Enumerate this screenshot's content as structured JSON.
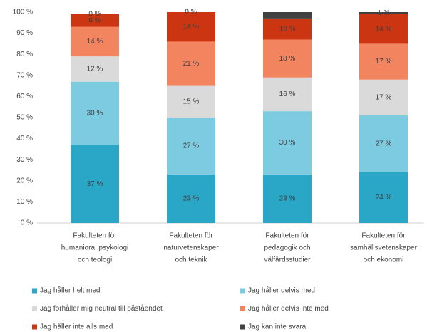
{
  "chart_data": {
    "type": "stacked_bar",
    "categories": [
      [
        "Fakulteten för",
        "humaniora, psykologi",
        "och teologi"
      ],
      [
        "Fakulteten för",
        "naturvetenskaper",
        "och teknik"
      ],
      [
        "Fakulteten för",
        "pedagogik och",
        "välfärdsstudier"
      ],
      [
        "Fakulteten för",
        "samhällsvetenskaper",
        "och ekonomi"
      ]
    ],
    "series": [
      {
        "name": "Jag håller helt med",
        "color": "#2aa6c6",
        "values": [
          37,
          23,
          23,
          24
        ],
        "value_labels": [
          "37 %",
          "23 %",
          "23 %",
          "24 %"
        ]
      },
      {
        "name": "Jag håller delvis med",
        "color": "#7dcbe1",
        "values": [
          30,
          27,
          30,
          27
        ],
        "value_labels": [
          "30 %",
          "27 %",
          "30 %",
          "27 %"
        ]
      },
      {
        "name": "Jag förhåller mig neutral till påståendet",
        "color": "#dadada",
        "values": [
          12,
          15,
          16,
          17
        ],
        "value_labels": [
          "12 %",
          "15 %",
          "16 %",
          "17 %"
        ]
      },
      {
        "name": "Jag håller delvis inte med",
        "color": "#f2845f",
        "values": [
          14,
          21,
          18,
          17
        ],
        "value_labels": [
          "14 %",
          "21 %",
          "18 %",
          "17 %"
        ]
      },
      {
        "name": "Jag håller inte alls med",
        "color": "#cc3512",
        "values": [
          6,
          14,
          10,
          14
        ],
        "value_labels": [
          "6 %",
          "14 %",
          "10 %",
          "14 %"
        ]
      },
      {
        "name": "Jag kan inte svara",
        "color": "#404040",
        "values": [
          0,
          0,
          3,
          1
        ],
        "value_labels": [
          "0 %",
          "0 %",
          "3 %",
          "1 %"
        ]
      }
    ],
    "ylim": [
      0,
      100
    ],
    "yticks": [
      {
        "value": 0,
        "label": "0 %"
      },
      {
        "value": 10,
        "label": "10 %"
      },
      {
        "value": 20,
        "label": "20 %"
      },
      {
        "value": 30,
        "label": "30 %"
      },
      {
        "value": 40,
        "label": "40 %"
      },
      {
        "value": 50,
        "label": "50 %"
      },
      {
        "value": 60,
        "label": "60 %"
      },
      {
        "value": 70,
        "label": "70 %"
      },
      {
        "value": 80,
        "label": "80 %"
      },
      {
        "value": 90,
        "label": "90 %"
      },
      {
        "value": 100,
        "label": "100 %"
      }
    ],
    "grid": false,
    "legend": "bottom"
  }
}
